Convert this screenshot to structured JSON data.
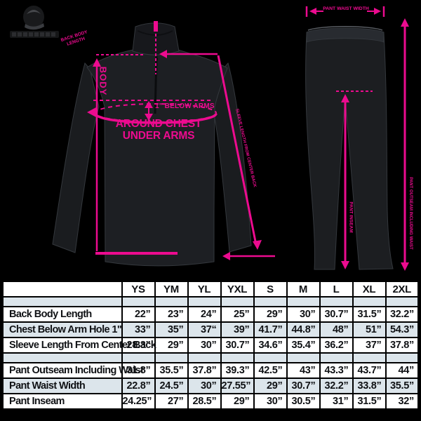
{
  "colors": {
    "background": "#000000",
    "accent_pink": "#ec0b8f",
    "table_tint": "#dce5eb",
    "garment": "#1c1e21"
  },
  "diagram": {
    "jacket": {
      "back_body_note": "BACK BODY LENGTH",
      "body_axis": "BODY",
      "below_arms": "1\" BELOW ARMS",
      "around_chest": "AROUND CHEST UNDER ARMS",
      "sleeve_note": "SLEEVE LENGTH FROM CENTER BACK"
    },
    "pants": {
      "waist_note": "PANT WAIST WIDTH",
      "outseam_note": "PANT OUTSEAM INCLUDING WAIST",
      "inseam_note": "PANT INSEAM"
    }
  },
  "size_table": {
    "columns": [
      "",
      "YS",
      "YM",
      "YL",
      "YXL",
      "S",
      "M",
      "L",
      "XL",
      "2XL"
    ],
    "rows": [
      {
        "label": "",
        "spacer": true,
        "tint": true,
        "values": [
          "",
          "",
          "",
          "",
          "",
          "",
          "",
          "",
          ""
        ]
      },
      {
        "label": "Back Body Length",
        "values": [
          "22”",
          "23”",
          "24”",
          "25”",
          "29”",
          "30”",
          "30.7”",
          "31.5”",
          "32.2”"
        ]
      },
      {
        "label": "Chest Below Arm Hole 1\"",
        "tint": true,
        "values": [
          "33”",
          "35”",
          "37“",
          "39”",
          "41.7”",
          "44.8”",
          "48”",
          "51”",
          "54.3”"
        ]
      },
      {
        "label": "Sleeve Length From Center Back",
        "values": [
          "28.3”",
          "29”",
          "30”",
          "30.7”",
          "34.6”",
          "35.4”",
          "36.2”",
          "37”",
          "37.8”"
        ]
      },
      {
        "label": "",
        "spacer": true,
        "tint": true,
        "values": [
          "",
          "",
          "",
          "",
          "",
          "",
          "",
          "",
          ""
        ]
      },
      {
        "label": "Pant Outseam Including Waist",
        "values": [
          "31.8”",
          "35.5”",
          "37.8”",
          "39.3”",
          "42.5”",
          "43”",
          "43.3”",
          "43.7”",
          "44”"
        ]
      },
      {
        "label": "Pant Waist Width",
        "tint": true,
        "values": [
          "22.8”",
          "24.5”",
          "30”",
          "27.55”",
          "29”",
          "30.7”",
          "32.2”",
          "33.8”",
          "35.5”"
        ]
      },
      {
        "label": "Pant Inseam",
        "values": [
          "24.25”",
          "27”",
          "28.5”",
          "29”",
          "30”",
          "30.5”",
          "31”",
          "31.5”",
          "32”"
        ]
      }
    ]
  }
}
